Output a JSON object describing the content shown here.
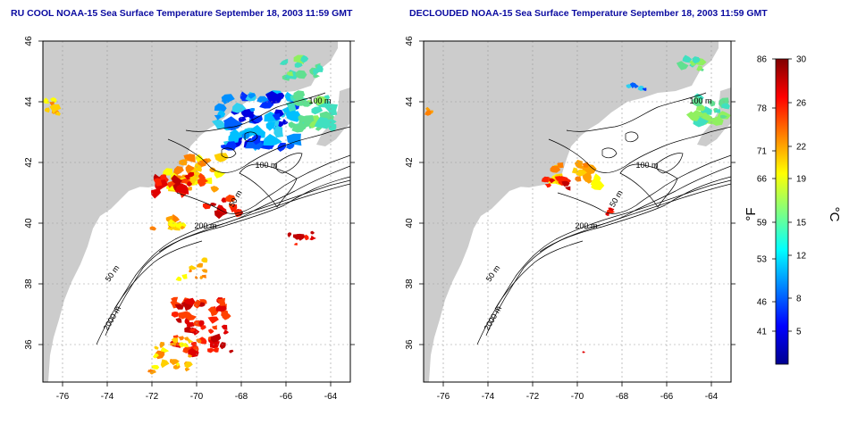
{
  "panels": [
    {
      "title": "RU COOL NOAA-15 Sea Surface Temperature September 18, 2003 11:59 GMT",
      "xticks": [
        "-76",
        "-74",
        "-72",
        "-70",
        "-68",
        "-66",
        "-64"
      ],
      "yticks": [
        "46",
        "44",
        "42",
        "40",
        "38",
        "36"
      ],
      "contour_labels": [
        "100 m",
        "100 m",
        "50 m",
        "200 m",
        "50 m",
        "2000 m"
      ]
    },
    {
      "title": "DECLOUDED NOAA-15 Sea Surface Temperature September 18, 2003 11:59 GMT",
      "xticks": [
        "-76",
        "-74",
        "-72",
        "-70",
        "-68",
        "-66",
        "-64"
      ],
      "yticks": [
        "46",
        "44",
        "42",
        "40",
        "38",
        "36"
      ],
      "contour_labels": [
        "100 m",
        "100 m",
        "50 m",
        "200 m",
        "50 m",
        "2000 m"
      ]
    }
  ],
  "colorbar": {
    "left_unit": "°F",
    "right_unit": "°C",
    "f_ticks": [
      "86",
      "78",
      "71",
      "66",
      "59",
      "53",
      "46",
      "41"
    ],
    "c_ticks": [
      "30",
      "26",
      "22",
      "19",
      "15",
      "12",
      "8",
      "5"
    ],
    "gradient": [
      "#00008f",
      "#0000ff",
      "#0080ff",
      "#00ffff",
      "#80ff80",
      "#ffff00",
      "#ff8000",
      "#ff0000",
      "#800000"
    ]
  },
  "colors": {
    "land": "#cccccc",
    "ocean": "#ffffff",
    "contour": "#000000",
    "title": "#0a0aa0"
  }
}
